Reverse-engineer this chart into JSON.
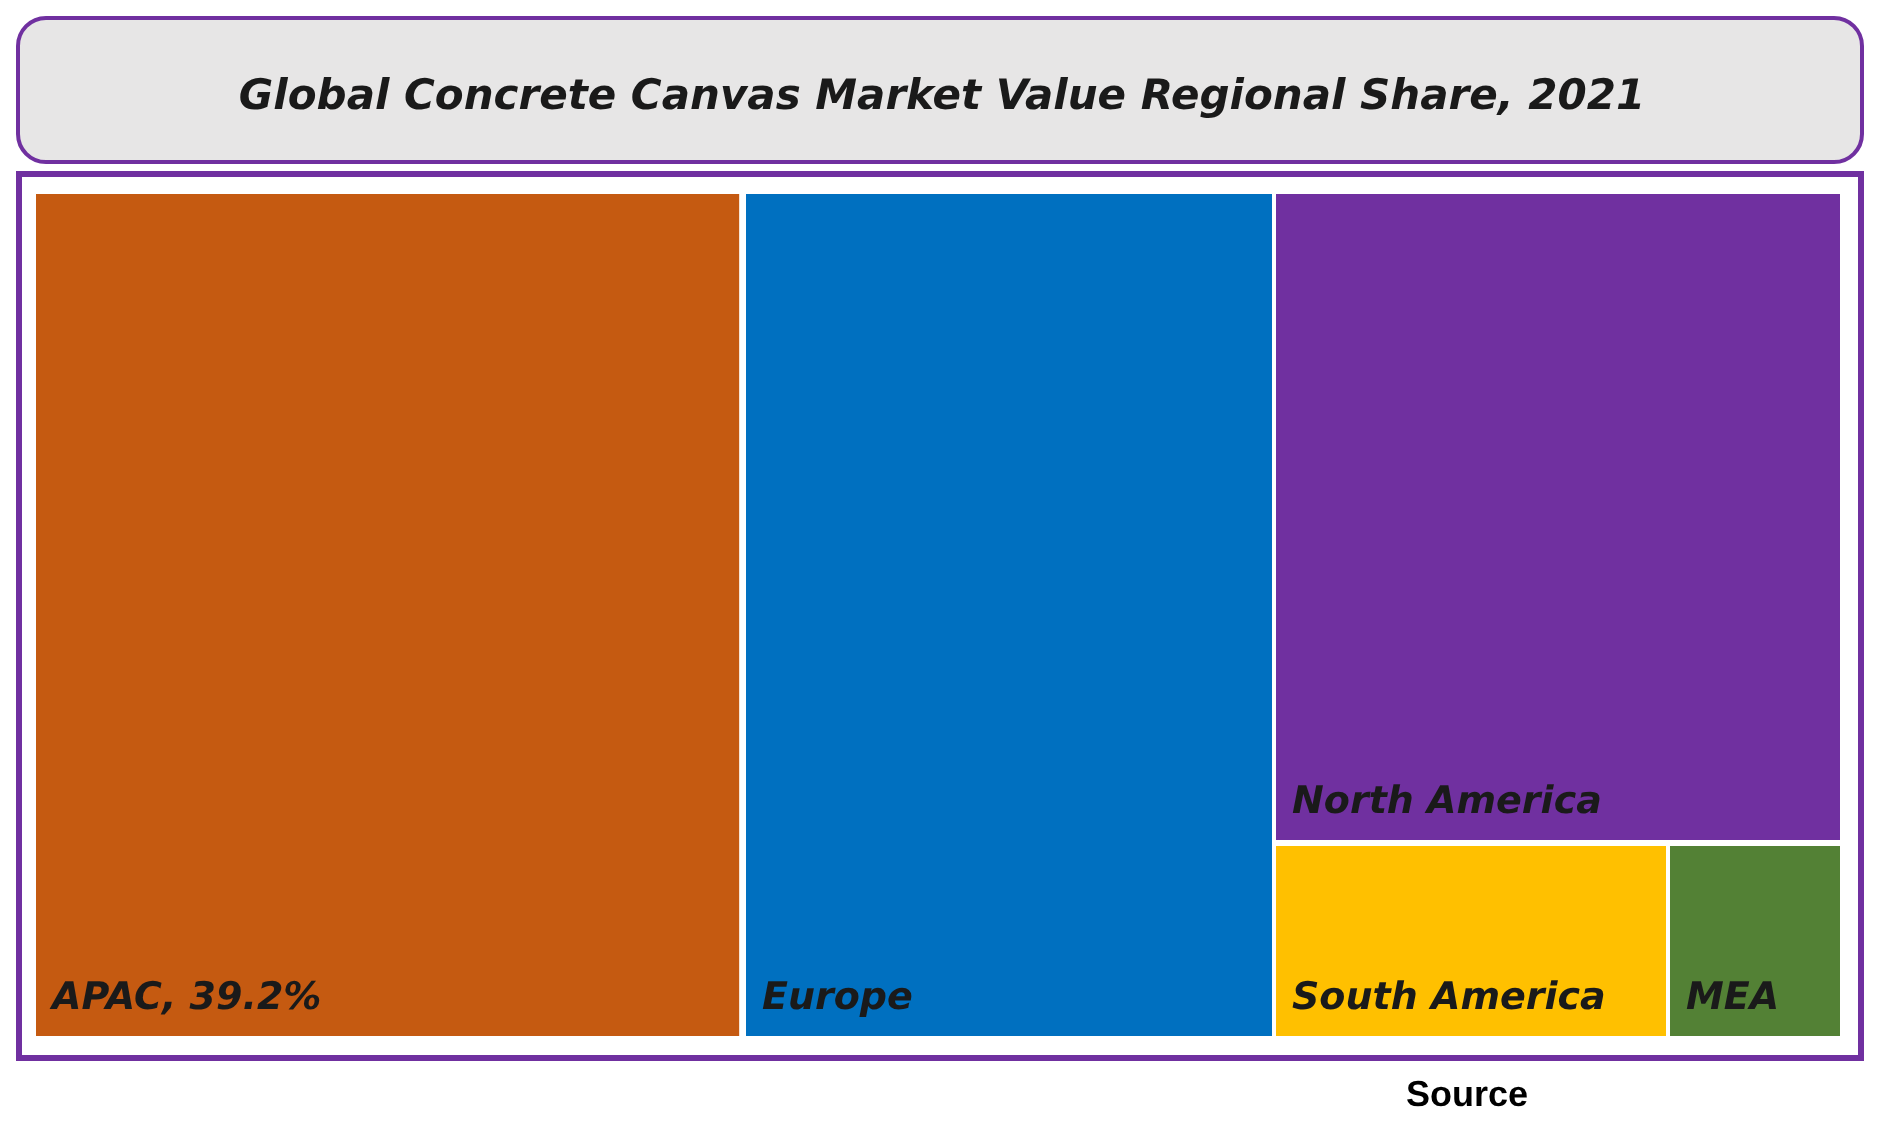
{
  "chart_data": {
    "type": "other",
    "title": "Global Concrete Canvas Market Value Regional Share, 2021",
    "categories": [
      "APAC",
      "Europe",
      "North America",
      "South America",
      "MEA"
    ],
    "values": [
      39.2,
      null,
      null,
      null,
      null
    ],
    "value_labels": [
      ", 39.2%",
      null,
      null,
      null,
      null
    ],
    "colors": [
      "#c55a11",
      "#0070c0",
      "#7030a0",
      "#ffc000",
      "#538135"
    ],
    "annotations": [
      "Source"
    ]
  }
}
